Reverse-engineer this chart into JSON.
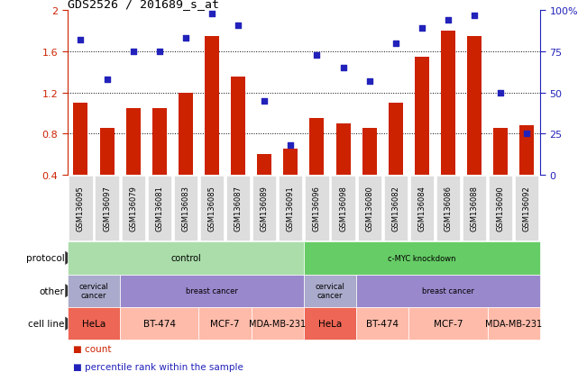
{
  "title": "GDS2526 / 201689_s_at",
  "samples": [
    "GSM136095",
    "GSM136097",
    "GSM136079",
    "GSM136081",
    "GSM136083",
    "GSM136085",
    "GSM136087",
    "GSM136089",
    "GSM136091",
    "GSM136096",
    "GSM136098",
    "GSM136080",
    "GSM136082",
    "GSM136084",
    "GSM136086",
    "GSM136088",
    "GSM136090",
    "GSM136092"
  ],
  "bar_values": [
    1.1,
    0.85,
    1.05,
    1.05,
    1.2,
    1.75,
    1.35,
    0.6,
    0.65,
    0.95,
    0.9,
    0.85,
    1.1,
    1.55,
    1.8,
    1.75,
    0.85,
    0.88
  ],
  "dot_pct": [
    82,
    58,
    75,
    75,
    83,
    98,
    91,
    45,
    18,
    73,
    65,
    57,
    80,
    89,
    94,
    97,
    50,
    25
  ],
  "bar_color": "#cc2200",
  "dot_color": "#2222bb",
  "ylim_left": [
    0.4,
    2.0
  ],
  "ylim_right": [
    0,
    100
  ],
  "yticks_left": [
    0.4,
    0.8,
    1.2,
    1.6,
    2.0
  ],
  "yticks_right": [
    0,
    25,
    50,
    75,
    100
  ],
  "yticklabels_left": [
    "0.4",
    "0.8",
    "1.2",
    "1.6",
    "2"
  ],
  "yticklabels_right": [
    "0",
    "25",
    "50",
    "75",
    "100%"
  ],
  "grid_lines": [
    0.8,
    1.2,
    1.6
  ],
  "annotation_rows": [
    {
      "label": "protocol",
      "segments": [
        {
          "text": "control",
          "span": [
            0,
            9
          ],
          "color": "#aaddaa"
        },
        {
          "text": "c-MYC knockdown",
          "span": [
            9,
            18
          ],
          "color": "#66cc66"
        }
      ]
    },
    {
      "label": "other",
      "segments": [
        {
          "text": "cervical\ncancer",
          "span": [
            0,
            2
          ],
          "color": "#aaaacc"
        },
        {
          "text": "breast cancer",
          "span": [
            2,
            9
          ],
          "color": "#9988cc"
        },
        {
          "text": "cervical\ncancer",
          "span": [
            9,
            11
          ],
          "color": "#aaaacc"
        },
        {
          "text": "breast cancer",
          "span": [
            11,
            18
          ],
          "color": "#9988cc"
        }
      ]
    },
    {
      "label": "cell line",
      "segments": [
        {
          "text": "HeLa",
          "span": [
            0,
            2
          ],
          "color": "#ee6655"
        },
        {
          "text": "BT-474",
          "span": [
            2,
            5
          ],
          "color": "#ffbbaa"
        },
        {
          "text": "MCF-7",
          "span": [
            5,
            7
          ],
          "color": "#ffbbaa"
        },
        {
          "text": "MDA-MB-231",
          "span": [
            7,
            9
          ],
          "color": "#ffbbaa"
        },
        {
          "text": "HeLa",
          "span": [
            9,
            11
          ],
          "color": "#ee6655"
        },
        {
          "text": "BT-474",
          "span": [
            11,
            13
          ],
          "color": "#ffbbaa"
        },
        {
          "text": "MCF-7",
          "span": [
            13,
            16
          ],
          "color": "#ffbbaa"
        },
        {
          "text": "MDA-MB-231",
          "span": [
            16,
            18
          ],
          "color": "#ffbbaa"
        }
      ]
    }
  ],
  "legend": [
    {
      "marker": "s",
      "color": "#cc2200",
      "label": "count"
    },
    {
      "marker": "s",
      "color": "#2222bb",
      "label": "percentile rank within the sample"
    }
  ]
}
